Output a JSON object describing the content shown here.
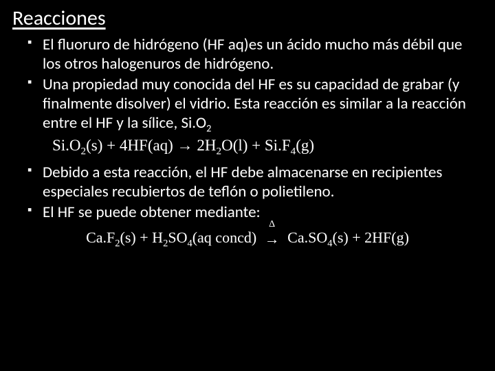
{
  "title": "Reacciones",
  "bullets": {
    "b1": "El fluoruro de hidrógeno (HF aq)es un ácido mucho más débil que los otros halogenuros de hidrógeno.",
    "b2": "Una propiedad muy conocida del HF es su capacidad de grabar (y finalmente disolver) el vidrio. Esta reacción es similar a la reacción entre el HF y la sílice, Si.O",
    "b2_sub": "2",
    "b3": "Debido a esta reacción, el HF debe almacenarse en recipientes especiales recubiertos de teflón o polietileno.",
    "b4": "El HF se puede obtener mediante:"
  },
  "equation1": {
    "r1a": "Si.O",
    "r1a_sub": "2",
    "r1a_state": "(s)",
    "plus1": " + ",
    "r1b_coeff": " 4",
    "r1b": "HF",
    "r1b_state": "(aq)",
    "arrow": "   →   ",
    "p1a_coeff": "2",
    "p1a": "H",
    "p1a_sub": "2",
    "p1a_tail": "O",
    "p1a_state": "(l)",
    "plus2": " + ",
    "p1b": " Si.F",
    "p1b_sub": "4",
    "p1b_state": "(g)"
  },
  "equation2": {
    "r2a": "Ca.F",
    "r2a_sub": "2",
    "r2a_state": "(s)",
    "plus3": " + ",
    "r2b": " H",
    "r2b_sub": "2",
    "r2b_tail": "SO",
    "r2b_sub2": "4",
    "r2b_state": "(aq concd)",
    "delta": "Δ",
    "arrow2": "→",
    "p2a": " Ca.SO",
    "p2a_sub": "4",
    "p2a_state": "(s)",
    "plus4": " + ",
    "p2b_coeff": " 2",
    "p2b": "HF",
    "p2b_state": "(g)"
  },
  "colors": {
    "background": "#000000",
    "text": "#ffffff"
  },
  "fonts": {
    "body": "Calibri",
    "math": "Cambria Math",
    "title_size_pt": 30,
    "body_size_pt": 23,
    "eq_size_pt": 23
  }
}
